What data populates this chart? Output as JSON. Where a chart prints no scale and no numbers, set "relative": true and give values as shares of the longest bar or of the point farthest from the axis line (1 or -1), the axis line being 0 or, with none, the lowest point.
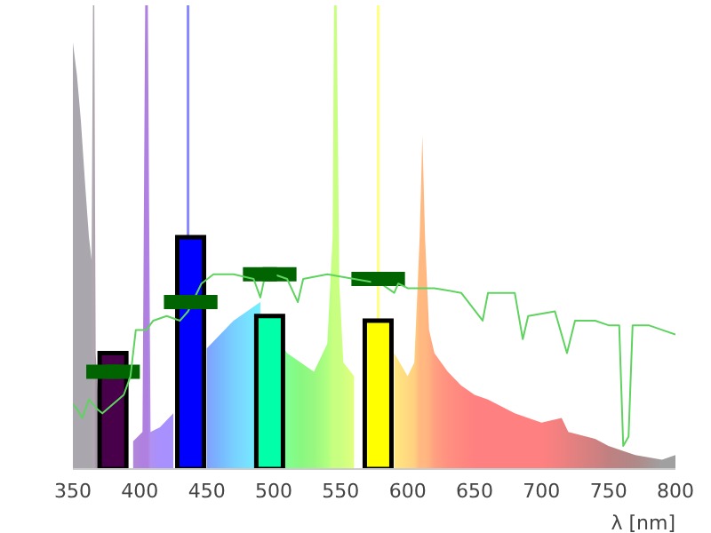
{
  "chart_data": {
    "type": "area",
    "relative": true,
    "xlabel": "λ [nm]",
    "xlim": [
      350,
      800
    ],
    "xticks": [
      350,
      400,
      450,
      500,
      550,
      600,
      650,
      700,
      750,
      800
    ],
    "series": [
      {
        "x": [
          350,
          353,
          356,
          359,
          362,
          364,
          365,
          366,
          367,
          370,
          375,
          385,
          395,
          402,
          404,
          406,
          408,
          415,
          425,
          432,
          435,
          437,
          440,
          450,
          460,
          470,
          480,
          490,
          495,
          505,
          510,
          520,
          530,
          540,
          544,
          545,
          547,
          549,
          552,
          560,
          570,
          576,
          577,
          579,
          581,
          590,
          600,
          605,
          609,
          611,
          613,
          616,
          620,
          630,
          640,
          650,
          660,
          680,
          700,
          715,
          720,
          740,
          750,
          770,
          790,
          800
        ],
        "values": [
          0.92,
          0.85,
          0.75,
          0.62,
          0.5,
          0.45,
          1,
          1,
          0.25,
          0.1,
          null,
          null,
          0.06,
          0.08,
          1,
          1,
          0.08,
          0.09,
          0.12,
          null,
          1,
          1,
          null,
          0.26,
          0.29,
          0.32,
          0.34,
          0.36,
          null,
          0.27,
          0.25,
          0.23,
          0.21,
          0.27,
          0.5,
          1,
          1,
          0.4,
          0.23,
          0.2,
          null,
          null,
          1,
          1,
          null,
          0.25,
          0.2,
          0.23,
          0.5,
          0.72,
          0.5,
          0.3,
          0.25,
          0.21,
          0.18,
          0.16,
          0.15,
          0.12,
          0.1,
          0.11,
          0.08,
          0.065,
          0.05,
          0.03,
          0.02,
          0.03
        ],
        "colors": [
          "#aaa6ad",
          "#aaa6ad",
          "#aaa6ad",
          "#aaa6ad",
          "#aaa6ad",
          "#aaa6ad",
          "#b0a8b0",
          "#b0a8b0",
          "#a898a8",
          "#a090a8",
          "#a890b8",
          "#b088d8",
          "#b088d8",
          "#b080e0",
          "#b080e0",
          "#b080e0",
          "#b090f0",
          "#a890ff",
          "#a890ff",
          "#a890ff",
          "#8888ff",
          "#8888ff",
          "#80a0ff",
          "#80a0ff",
          "#78b8ff",
          "#78d0ff",
          "#78e0ff",
          "#70f0ff",
          "#60ffd0",
          "#70ffa0",
          "#80ff90",
          "#88f880",
          "#98f880",
          "#b0ff80",
          "#c8ff80",
          "#c8ff80",
          "#c8ff80",
          "#c8ff80",
          "#d0ff80",
          "#e0ff80",
          "#f0ff80",
          "#ffff80",
          "#ffff80",
          "#ffff80",
          "#ffff80",
          "#ffe880",
          "#ffd880",
          "#ffd080",
          "#ffb880",
          "#ffb880",
          "#ffb880",
          "#ffb080",
          "#ffa080",
          "#ff9080",
          "#ff8880",
          "#ff8080",
          "#ff8080",
          "#ff8080",
          "#ff8080",
          "#f08080",
          "#e88080",
          "#d08080",
          "#c08080",
          "#b08888",
          "#a0a0a0",
          "#a0a0a0"
        ]
      },
      {
        "type": "line",
        "color": "#5fd35f",
        "x": [
          350,
          353,
          357,
          362,
          368,
          372,
          388,
          393,
          397,
          405,
          410,
          420,
          430,
          436,
          446,
          455,
          470,
          485,
          490,
          493,
          500,
          510,
          518,
          522,
          540,
          560,
          580,
          590,
          593,
          600,
          620,
          640,
          656,
          660,
          680,
          686,
          690,
          710,
          719,
          725,
          740,
          750,
          758,
          761,
          765,
          768,
          780,
          790,
          800
        ],
        "values": [
          0.14,
          0.13,
          0.11,
          0.15,
          0.13,
          0.12,
          0.16,
          0.2,
          0.3,
          0.3,
          0.32,
          0.33,
          0.32,
          0.34,
          0.4,
          0.42,
          0.42,
          0.41,
          0.37,
          0.41,
          0.42,
          0.41,
          0.36,
          0.41,
          0.42,
          0.41,
          0.4,
          0.38,
          0.4,
          0.39,
          0.39,
          0.38,
          0.32,
          0.38,
          0.38,
          0.28,
          0.33,
          0.34,
          0.25,
          0.32,
          0.32,
          0.31,
          0.31,
          0.05,
          0.07,
          0.31,
          0.31,
          0.3,
          0.29
        ]
      },
      {
        "type": "scatter",
        "color": "#006400",
        "marker": "square",
        "x": [
          380,
          438,
          497,
          578
        ],
        "values": [
          0.21,
          0.36,
          0.42,
          0.41
        ],
        "xerrors": [
          20,
          20,
          20,
          20
        ]
      },
      {
        "type": "bar",
        "x": [
          380,
          438,
          497,
          578
        ],
        "values": [
          0.25,
          0.5,
          0.33,
          0.32
        ],
        "colors": [
          "#48004a",
          "#0000ff",
          "#00ffa8",
          "#ffff00"
        ]
      }
    ]
  }
}
